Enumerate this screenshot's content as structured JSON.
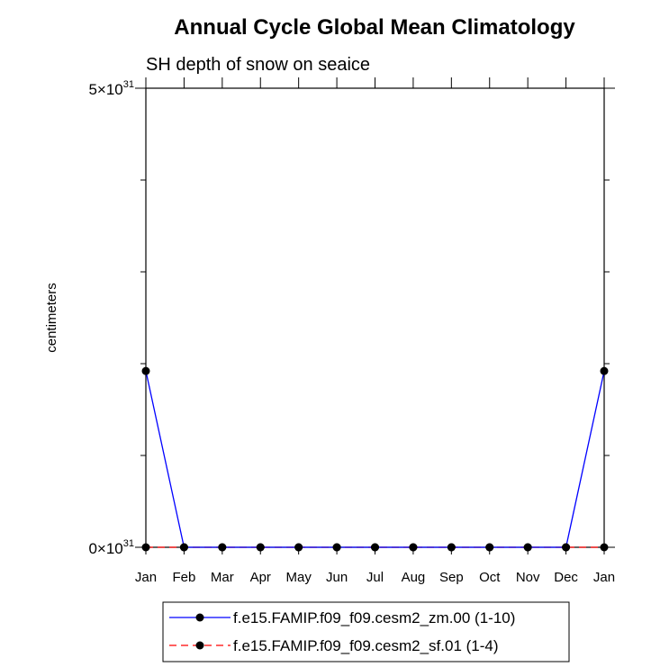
{
  "chart_data": {
    "type": "line",
    "title": "Annual Cycle Global Mean Climatology",
    "subtitle": "SH depth of snow on seaice",
    "xlabel": "",
    "ylabel": "centimeters",
    "categories": [
      "Jan",
      "Feb",
      "Mar",
      "Apr",
      "May",
      "Jun",
      "Jul",
      "Aug",
      "Sep",
      "Oct",
      "Nov",
      "Dec",
      "Jan"
    ],
    "ylim": [
      0,
      5e+31
    ],
    "yticks": [
      {
        "mantissa": "5",
        "exponent": "31",
        "value": 5e+31
      },
      {
        "mantissa": "0",
        "exponent": "31",
        "value": 0
      }
    ],
    "grid": false,
    "legend_position": "bottom",
    "series": [
      {
        "name": "f.e15.FAMIP.f09_f09.cesm2_zm.00 (1-10)",
        "color": "#0000ff",
        "dash": "solid",
        "marker": "circle",
        "values": [
          1.92e+31,
          0,
          0,
          0,
          0,
          0,
          0,
          0,
          0,
          0,
          0,
          0,
          1.92e+31
        ]
      },
      {
        "name": "f.e15.FAMIP.f09_f09.cesm2_sf.01 (1-4)",
        "color": "#ff0000",
        "dash": "dashed",
        "marker": "circle",
        "values": [
          0,
          0,
          0,
          0,
          0,
          0,
          0,
          0,
          0,
          0,
          0,
          0,
          0
        ]
      }
    ]
  }
}
